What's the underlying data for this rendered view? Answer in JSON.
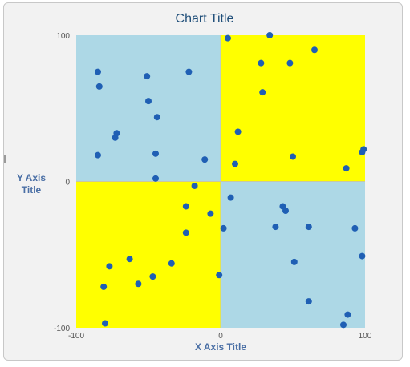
{
  "chart_data": {
    "type": "scatter",
    "title": "Chart Title",
    "xlabel": "X Axis Title",
    "ylabel": "Y Axis Title",
    "xlim": [
      -100,
      100
    ],
    "ylim": [
      -100,
      100
    ],
    "x_ticks": [
      "-100",
      "0",
      "100"
    ],
    "y_ticks": [
      "100",
      "0",
      "-100"
    ],
    "grid": false,
    "legend": "none",
    "quadrant_colors": {
      "top_left": "#add8e6",
      "top_right": "#ffff00",
      "bottom_left": "#ffff00",
      "bottom_right": "#add8e6"
    },
    "marker_color": "#1f5fb4",
    "title_color": "#1f4e79",
    "axis_title_color": "#4a6fa5",
    "points": [
      {
        "x": 5,
        "y": 98
      },
      {
        "x": 34,
        "y": 100
      },
      {
        "x": 28,
        "y": 81
      },
      {
        "x": 48,
        "y": 81
      },
      {
        "x": 65,
        "y": 90
      },
      {
        "x": 29,
        "y": 61
      },
      {
        "x": 12,
        "y": 34
      },
      {
        "x": 10,
        "y": 12
      },
      {
        "x": 50,
        "y": 17
      },
      {
        "x": 87,
        "y": 9
      },
      {
        "x": 98,
        "y": 20
      },
      {
        "x": 99,
        "y": 22
      },
      {
        "x": -85,
        "y": 75
      },
      {
        "x": -84,
        "y": 65
      },
      {
        "x": -51,
        "y": 72
      },
      {
        "x": -22,
        "y": 75
      },
      {
        "x": -50,
        "y": 55
      },
      {
        "x": -44,
        "y": 44
      },
      {
        "x": -72,
        "y": 33
      },
      {
        "x": -73,
        "y": 30
      },
      {
        "x": -85,
        "y": 18
      },
      {
        "x": -45,
        "y": 19
      },
      {
        "x": -11,
        "y": 15
      },
      {
        "x": -45,
        "y": 2
      },
      {
        "x": -18,
        "y": -3
      },
      {
        "x": -24,
        "y": -17
      },
      {
        "x": -7,
        "y": -22
      },
      {
        "x": -24,
        "y": -35
      },
      {
        "x": -34,
        "y": -56
      },
      {
        "x": -63,
        "y": -53
      },
      {
        "x": -77,
        "y": -58
      },
      {
        "x": -47,
        "y": -65
      },
      {
        "x": -57,
        "y": -70
      },
      {
        "x": -81,
        "y": -72
      },
      {
        "x": -80,
        "y": -97
      },
      {
        "x": -1,
        "y": -64
      },
      {
        "x": 7,
        "y": -11
      },
      {
        "x": 2,
        "y": -32
      },
      {
        "x": 43,
        "y": -17
      },
      {
        "x": 45,
        "y": -20
      },
      {
        "x": 38,
        "y": -31
      },
      {
        "x": 61,
        "y": -31
      },
      {
        "x": 51,
        "y": -55
      },
      {
        "x": 93,
        "y": -32
      },
      {
        "x": 98,
        "y": -51
      },
      {
        "x": 61,
        "y": -82
      },
      {
        "x": 88,
        "y": -91
      },
      {
        "x": 85,
        "y": -98
      }
    ]
  }
}
